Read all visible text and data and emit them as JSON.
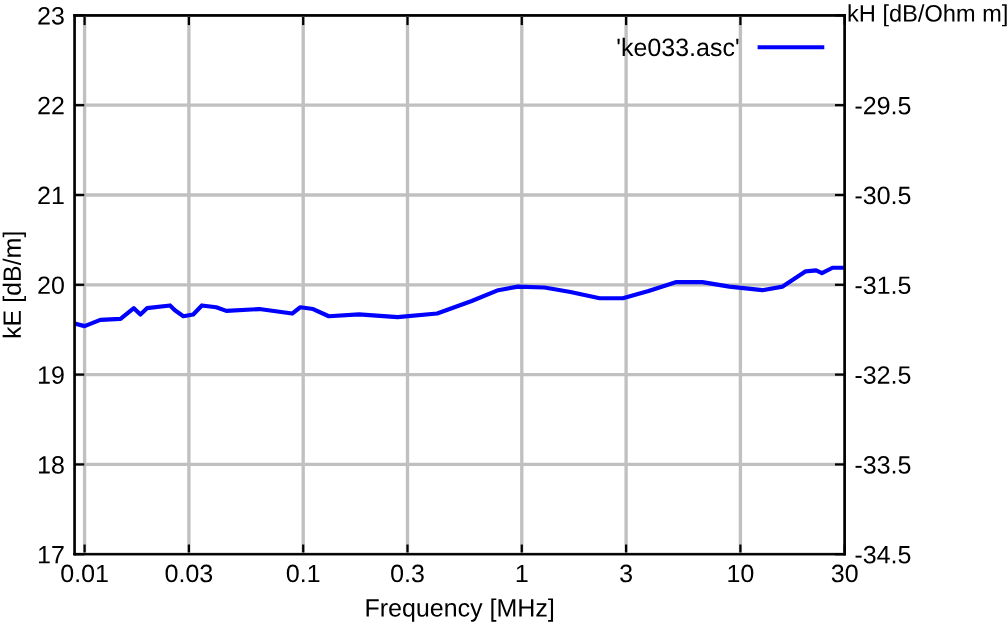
{
  "chart_data": {
    "type": "line",
    "xlabel": "Frequency [MHz]",
    "ylabel": "kE [dB/m]",
    "y2label": "kH [dB/Ohm m]",
    "log": "x",
    "grid": true,
    "legend": "top right",
    "marker": "none",
    "line_style": "solid",
    "xlim": [
      0.009,
      30
    ],
    "xticks": [
      0.01,
      0.03,
      0.1,
      0.3,
      1,
      3,
      10,
      30
    ],
    "ylim": [
      17,
      23
    ],
    "yticks": [
      17,
      18,
      19,
      20,
      21,
      22,
      23
    ],
    "y2lim": [
      -34.5,
      -28.5
    ],
    "y2ticks": [
      -34.5,
      -33.5,
      -32.5,
      -31.5,
      -30.5,
      -29.5,
      {
        "value": -28.5,
        "label": null
      }
    ],
    "series": [
      {
        "name": "'ke033.asc'",
        "color": "#0000ff",
        "x": [
          0.009,
          0.01,
          0.0118,
          0.0146,
          0.0168,
          0.018,
          0.0193,
          0.0246,
          0.0258,
          0.0283,
          0.0314,
          0.0344,
          0.04,
          0.0445,
          0.063,
          0.089,
          0.097,
          0.111,
          0.131,
          0.18,
          0.27,
          0.41,
          0.59,
          0.78,
          0.96,
          1.27,
          1.67,
          2.27,
          2.9,
          3.8,
          5.1,
          6.7,
          8.9,
          12.6,
          15.6,
          19.9,
          22.2,
          23.6,
          26.4,
          29.4
        ],
        "values": [
          19.57,
          19.54,
          19.61,
          19.62,
          19.74,
          19.67,
          19.74,
          19.77,
          19.72,
          19.65,
          19.67,
          19.77,
          19.75,
          19.71,
          19.73,
          19.68,
          19.75,
          19.73,
          19.65,
          19.67,
          19.64,
          19.68,
          19.82,
          19.94,
          19.98,
          19.97,
          19.92,
          19.85,
          19.85,
          19.93,
          20.03,
          20.03,
          19.98,
          19.94,
          19.98,
          20.15,
          20.16,
          20.13,
          20.19,
          20.19
        ]
      }
    ]
  }
}
